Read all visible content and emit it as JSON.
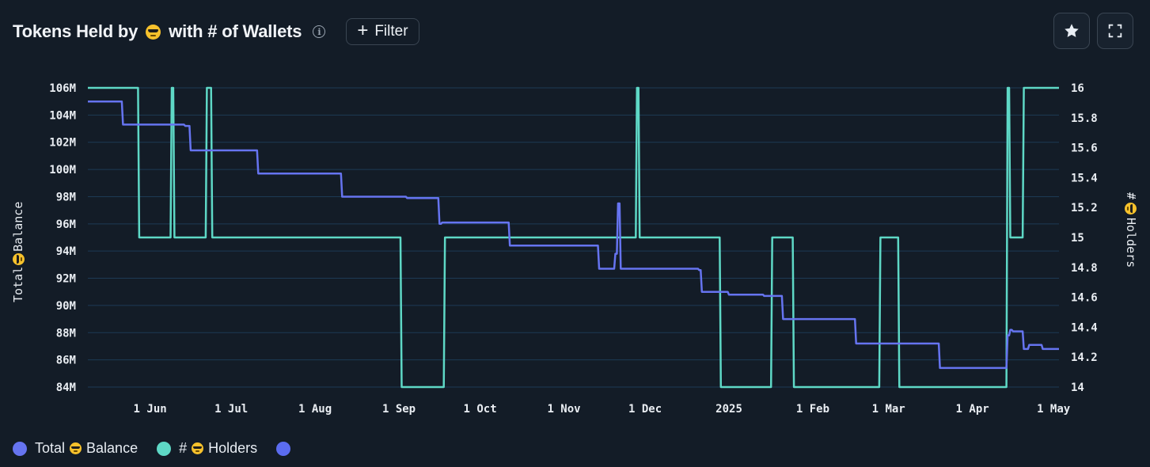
{
  "header": {
    "title_pre": "Tokens Held by",
    "title_post": "with # of Wallets",
    "filter_label": "Filter",
    "icons": [
      "emoji-sunglasses-icon",
      "info-icon",
      "plus-icon",
      "star-icon",
      "fullscreen-icon"
    ]
  },
  "colors": {
    "background": "#131c27",
    "balance": "#6674f0",
    "holders": "#5ed8c6",
    "grid": "#1d3a55",
    "extra": "#5b6cf0"
  },
  "chart_data": {
    "type": "line",
    "ylabel_left": [
      "Total",
      "Balance"
    ],
    "ylabel_right": [
      "#",
      "Holders"
    ],
    "y_left": {
      "min": 84,
      "max": 106,
      "ticks": [
        84,
        86,
        88,
        90,
        92,
        94,
        96,
        98,
        100,
        102,
        104,
        106
      ],
      "tick_labels": [
        "84M",
        "86M",
        "88M",
        "90M",
        "92M",
        "94M",
        "96M",
        "98M",
        "100M",
        "102M",
        "104M",
        "106M"
      ]
    },
    "y_right": {
      "min": 14,
      "max": 16,
      "ticks": [
        14,
        14.2,
        14.4,
        14.6,
        14.8,
        15,
        15.2,
        15.4,
        15.6,
        15.8,
        16
      ],
      "tick_labels": [
        "14",
        "14.2",
        "14.4",
        "14.6",
        "14.8",
        "15",
        "15.2",
        "15.4",
        "15.6",
        "15.8",
        "16"
      ]
    },
    "x_axis": {
      "start": "2024-05-09",
      "end": "2025-05-03",
      "ticks": [
        {
          "date": "2024-06-01",
          "label": "1 Jun"
        },
        {
          "date": "2024-07-01",
          "label": "1 Jul"
        },
        {
          "date": "2024-08-01",
          "label": "1 Aug"
        },
        {
          "date": "2024-09-01",
          "label": "1 Sep"
        },
        {
          "date": "2024-10-01",
          "label": "1 Oct"
        },
        {
          "date": "2024-11-01",
          "label": "1 Nov"
        },
        {
          "date": "2024-12-01",
          "label": "1 Dec"
        },
        {
          "date": "2025-01-01",
          "label": "2025"
        },
        {
          "date": "2025-02-01",
          "label": "1 Feb"
        },
        {
          "date": "2025-03-01",
          "label": "1 Mar"
        },
        {
          "date": "2025-04-01",
          "label": "1 Apr"
        },
        {
          "date": "2025-05-01",
          "label": "1 May"
        }
      ]
    },
    "series": [
      {
        "name": "Total Balance",
        "axis": "left",
        "step": true,
        "points": [
          [
            "2024-05-09",
            105.0
          ],
          [
            "2024-05-22",
            103.3
          ],
          [
            "2024-06-14",
            103.2
          ],
          [
            "2024-06-16",
            101.4
          ],
          [
            "2024-07-11",
            99.7
          ],
          [
            "2024-08-11",
            98.0
          ],
          [
            "2024-09-04",
            97.9
          ],
          [
            "2024-09-16",
            96.0
          ],
          [
            "2024-09-17",
            96.1
          ],
          [
            "2024-10-12",
            94.4
          ],
          [
            "2024-11-11",
            94.4
          ],
          [
            "2024-11-14",
            92.7
          ],
          [
            "2024-11-20",
            93.8
          ],
          [
            "2024-11-21",
            97.5
          ],
          [
            "2024-11-22",
            92.7
          ],
          [
            "2024-12-21",
            92.6
          ],
          [
            "2024-12-22",
            91.0
          ],
          [
            "2025-01-01",
            90.8
          ],
          [
            "2025-01-14",
            90.7
          ],
          [
            "2025-01-21",
            89.0
          ],
          [
            "2025-02-17",
            87.2
          ],
          [
            "2025-03-20",
            85.4
          ],
          [
            "2025-04-14",
            87.8
          ],
          [
            "2025-04-15",
            88.2
          ],
          [
            "2025-04-16",
            88.1
          ],
          [
            "2025-04-20",
            86.8
          ],
          [
            "2025-04-22",
            87.1
          ],
          [
            "2025-04-27",
            86.8
          ],
          [
            "2025-05-03",
            86.8
          ]
        ]
      },
      {
        "name": "# Holders",
        "axis": "right",
        "step": true,
        "points": [
          [
            "2024-05-09",
            16
          ],
          [
            "2024-05-28",
            15
          ],
          [
            "2024-06-09",
            16
          ],
          [
            "2024-06-10",
            15
          ],
          [
            "2024-06-22",
            16
          ],
          [
            "2024-06-24",
            15
          ],
          [
            "2024-09-02",
            14
          ],
          [
            "2024-09-18",
            15
          ],
          [
            "2024-11-28",
            16
          ],
          [
            "2024-11-29",
            15
          ],
          [
            "2024-12-29",
            14
          ],
          [
            "2025-01-17",
            15
          ],
          [
            "2025-01-25",
            14
          ],
          [
            "2025-02-26",
            15
          ],
          [
            "2025-03-05",
            14
          ],
          [
            "2025-04-14",
            16
          ],
          [
            "2025-04-15",
            15
          ],
          [
            "2025-04-20",
            16
          ],
          [
            "2025-05-03",
            16
          ]
        ]
      }
    ],
    "legend": [
      {
        "label_pre": "Total",
        "label_post": "Balance",
        "color": "#6674f0"
      },
      {
        "label_pre": "#",
        "label_post": "Holders",
        "color": "#5ed8c6"
      },
      {
        "label_pre": "",
        "label_post": "",
        "color": "#5b6cf0"
      }
    ],
    "legend_position": "bottom-left",
    "grid": true
  }
}
